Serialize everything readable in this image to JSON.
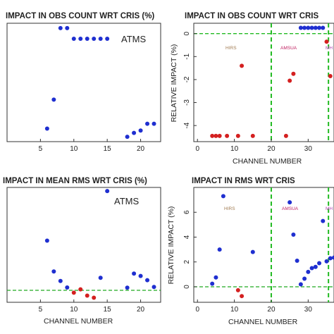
{
  "colors": {
    "blue": "#1f2fd0",
    "red": "#d42020",
    "green": "#22bb22",
    "hirs": "#a07a50",
    "amsua": "#c02060",
    "mhs": "#b040b0"
  },
  "chart_data": [
    {
      "type": "scatter",
      "title": "IMPACT IN OBS COUNT WRT CRIS (%)",
      "xlabel": "",
      "annotation": "ATMS",
      "xticks": [
        5,
        10,
        15,
        20
      ],
      "xlim": [
        0,
        23
      ],
      "ylim": [
        -1.8,
        0.65
      ],
      "grid": false,
      "series": [
        {
          "color": "blue",
          "points": [
            [
              6,
              -1.53
            ],
            [
              7,
              -0.93
            ],
            [
              8,
              0.55
            ],
            [
              9,
              0.55
            ],
            [
              10,
              0.33
            ],
            [
              11,
              0.33
            ],
            [
              12,
              0.33
            ],
            [
              13,
              0.33
            ],
            [
              14,
              0.33
            ],
            [
              15,
              0.33
            ],
            [
              18,
              -1.7
            ],
            [
              19,
              -1.62
            ],
            [
              20,
              -1.57
            ],
            [
              21,
              -1.43
            ],
            [
              22,
              -1.43
            ]
          ]
        }
      ]
    },
    {
      "type": "scatter",
      "title": "IMPACT IN OBS COUNT WRT CRIS",
      "xlabel": "CHANNEL NUMBER",
      "ylabel": "RELATIVE IMPACT (%)",
      "xticks": [
        0,
        10,
        20,
        30
      ],
      "yticks": [
        0,
        -1,
        -2,
        -3,
        -4
      ],
      "xlim": [
        -1,
        37
      ],
      "ylim": [
        -4.7,
        0.45
      ],
      "regions": [
        "HIRS",
        "AMSUA",
        "MH"
      ],
      "series": [
        {
          "color": "red",
          "points": [
            [
              4,
              -4.45
            ],
            [
              5,
              -4.45
            ],
            [
              6,
              -4.45
            ],
            [
              8,
              -4.45
            ],
            [
              11,
              -4.45
            ],
            [
              12,
              -1.4
            ],
            [
              15,
              -4.45
            ],
            [
              24,
              -4.45
            ],
            [
              25,
              -2.05
            ],
            [
              26,
              -1.75
            ],
            [
              35,
              -0.35
            ],
            [
              36,
              -1.85
            ]
          ]
        },
        {
          "color": "blue",
          "points": [
            [
              28,
              0.25
            ],
            [
              29,
              0.25
            ],
            [
              30,
              0.25
            ],
            [
              31,
              0.25
            ],
            [
              32,
              0.25
            ],
            [
              33,
              0.25
            ],
            [
              34,
              0.25
            ]
          ]
        }
      ]
    },
    {
      "type": "scatter",
      "title": "IMPACT IN MEAN RMS WRT CRIS (%)",
      "xlabel": "CHANNEL NUMBER",
      "annotation": "ATMS",
      "xticks": [
        5,
        10,
        15,
        20
      ],
      "xlim": [
        0,
        23
      ],
      "ylim": [
        -1.0,
        8.6
      ],
      "series": [
        {
          "color": "blue",
          "points": [
            [
              6,
              4.15
            ],
            [
              7,
              1.58
            ],
            [
              8,
              0.78
            ],
            [
              9,
              0.24
            ],
            [
              14,
              1.05
            ],
            [
              15,
              8.3
            ],
            [
              18,
              0.22
            ],
            [
              19,
              1.4
            ],
            [
              20,
              1.2
            ],
            [
              21,
              0.85
            ],
            [
              22,
              0.28
            ]
          ]
        },
        {
          "color": "red",
          "points": [
            [
              10,
              -0.2
            ],
            [
              11,
              0.08
            ],
            [
              12,
              -0.44
            ],
            [
              13,
              -0.62
            ]
          ]
        }
      ]
    },
    {
      "type": "scatter",
      "title": "IMPACT IN RMS WRT CRIS",
      "xlabel": "CHANNEL NUMBER",
      "ylabel": "RELATIVE IMPACT (%)",
      "xticks": [
        0,
        10,
        20,
        30
      ],
      "yticks": [
        0,
        2,
        4,
        6
      ],
      "xlim": [
        -1,
        37
      ],
      "ylim": [
        -1.25,
        8.0
      ],
      "regions": [
        "HIRS",
        "AMSUA",
        "MH"
      ],
      "series": [
        {
          "color": "blue",
          "points": [
            [
              4,
              0.25
            ],
            [
              5,
              0.75
            ],
            [
              6,
              3.0
            ],
            [
              7,
              7.3
            ],
            [
              15,
              2.8
            ],
            [
              25,
              6.8
            ],
            [
              26,
              4.2
            ],
            [
              27,
              2.1
            ],
            [
              28,
              0.2
            ],
            [
              29,
              0.65
            ],
            [
              30,
              1.2
            ],
            [
              31,
              1.5
            ],
            [
              32,
              1.6
            ],
            [
              33,
              1.9
            ],
            [
              34,
              5.3
            ],
            [
              35,
              2.05
            ],
            [
              36,
              2.3
            ],
            [
              37,
              2.35
            ]
          ]
        },
        {
          "color": "red",
          "points": [
            [
              11,
              -0.28
            ],
            [
              12,
              -0.75
            ]
          ]
        }
      ]
    }
  ]
}
